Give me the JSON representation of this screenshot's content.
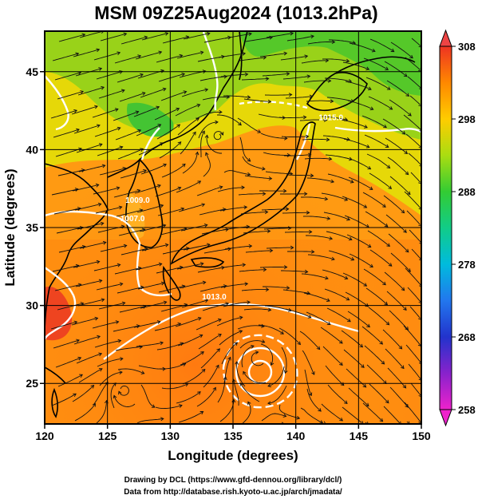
{
  "title": "MSM 09Z25Aug2024 (1013.2hPa)",
  "x_axis": {
    "label": "Longitude (degrees)",
    "range": [
      120,
      150
    ],
    "ticks": [
      120,
      125,
      130,
      135,
      140,
      145,
      150
    ]
  },
  "y_axis": {
    "label": "Latitude  (degrees)",
    "range": [
      22.4,
      47.6
    ],
    "ticks": [
      25,
      30,
      35,
      40,
      45
    ]
  },
  "colorbar": {
    "range": [
      258,
      308
    ],
    "ticks": [
      258,
      268,
      278,
      288,
      298,
      308
    ],
    "colors": [
      "#ee22cc",
      "#8822cc",
      "#2222cc",
      "#2266ee",
      "#00aaee",
      "#00ccaa",
      "#22bb44",
      "#55cc22",
      "#aadd11",
      "#dddd00",
      "#ffbb00",
      "#ff8800",
      "#ff5522",
      "#ee2222"
    ]
  },
  "contour_labels": [
    {
      "text": "1007.0",
      "lon": 127.0,
      "lat": 35.4
    },
    {
      "text": "1009.0",
      "lon": 127.4,
      "lat": 36.6
    },
    {
      "text": "1013.0",
      "lon": 133.5,
      "lat": 30.4
    },
    {
      "text": "1015.0",
      "lon": 142.8,
      "lat": 41.9
    }
  ],
  "vortices": [
    {
      "name": "typhoon-center",
      "lon": 137.0,
      "lat": 26.6
    },
    {
      "name": "low-north",
      "lon": 133.8,
      "lat": 40.9
    },
    {
      "name": "eddy-sw",
      "lon": 126.3,
      "lat": 24.6
    }
  ],
  "credits": [
    "Drawing by DCL (https://www.gfd-dennou.org/library/dcl/)",
    "Data from http://database.rish.kyoto-u.ac.jp/arch/jmadata/"
  ]
}
